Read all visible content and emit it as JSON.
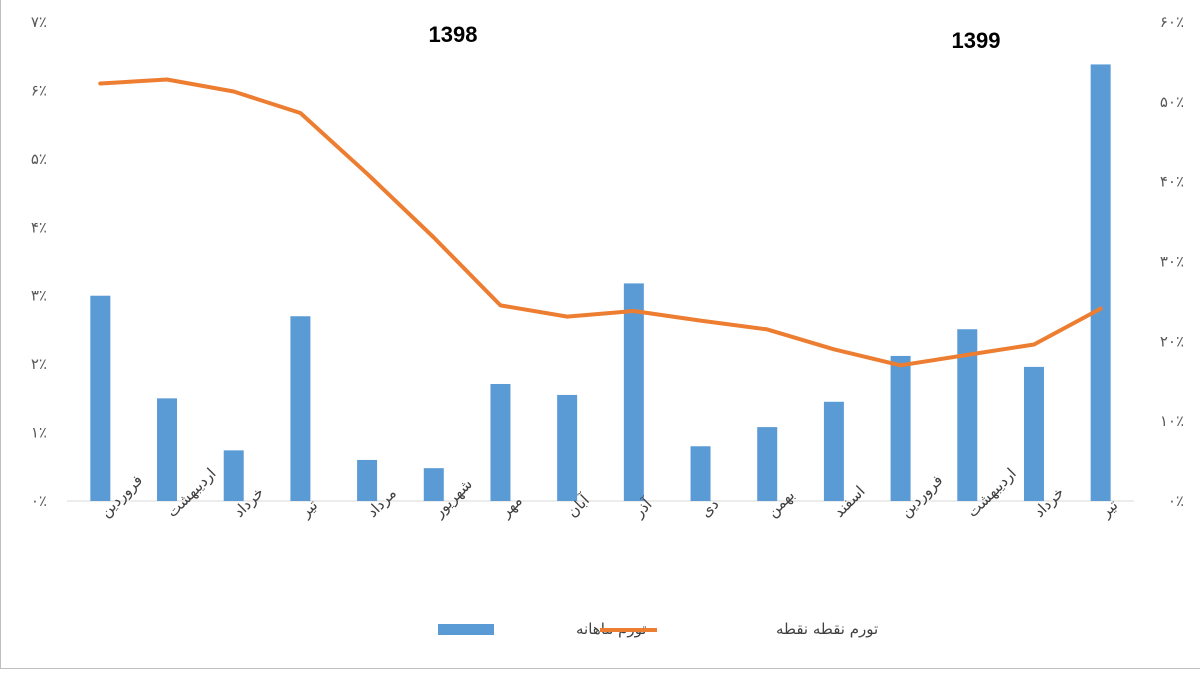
{
  "chart_data": {
    "type": "bar+line",
    "year_labels": [
      "1398",
      "1399"
    ],
    "categories": [
      "فروردین",
      "اردیبهشت",
      "خرداد",
      "تیر",
      "مرداد",
      "شهریور",
      "مهر",
      "آبان",
      "آذر",
      "دی",
      "بهمن",
      "اسفند",
      "فروردین",
      "اردیبهشت",
      "خرداد",
      "تیر"
    ],
    "series": [
      {
        "name": "تورم ماهانه",
        "type": "bar",
        "axis": "left",
        "color": "#5b9bd5",
        "values": [
          3.0,
          1.5,
          0.74,
          2.7,
          0.6,
          0.48,
          1.71,
          1.55,
          3.18,
          0.8,
          1.08,
          1.45,
          2.12,
          2.51,
          1.96,
          6.38
        ]
      },
      {
        "name": "تورم نقطه نقطه",
        "type": "line",
        "axis": "right",
        "color": "#ed7d31",
        "values": [
          52.3,
          52.8,
          51.3,
          48.6,
          41.0,
          33.0,
          24.5,
          23.1,
          23.8,
          22.6,
          21.5,
          19.0,
          17.0,
          18.3,
          19.6,
          24.1
        ]
      }
    ],
    "y_left": {
      "min": 0,
      "max": 7,
      "step": 1,
      "tick_labels": [
        "۰٪",
        "۱٪",
        "۲٪",
        "۳٪",
        "۴٪",
        "۵٪",
        "۶٪",
        "۷٪"
      ]
    },
    "y_right": {
      "min": 0,
      "max": 60,
      "step": 10,
      "tick_labels": [
        "۰٪",
        "۱۰٪",
        "۲۰٪",
        "۳۰٪",
        "۴۰٪",
        "۵۰٪",
        "۶۰٪"
      ]
    },
    "grid": false,
    "legend_position": "bottom"
  }
}
